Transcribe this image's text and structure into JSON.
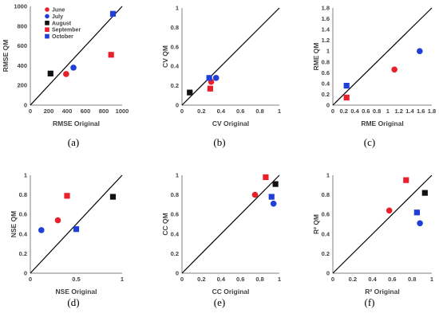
{
  "colors": {
    "June": "#e8202a",
    "July": "#1f3fd6",
    "August": "#111111",
    "September": "#e8202a",
    "October": "#1f3fd6",
    "axis": "#808080",
    "line": "#000000"
  },
  "legend": [
    {
      "name": "June",
      "marker": "circle"
    },
    {
      "name": "July",
      "marker": "circle"
    },
    {
      "name": "August",
      "marker": "square"
    },
    {
      "name": "September",
      "marker": "square"
    },
    {
      "name": "October",
      "marker": "square"
    }
  ],
  "chart_data": [
    {
      "type": "scatter",
      "panel_label": "(a)",
      "xlabel": "RMSE Original",
      "ylabel": "RMSE QM",
      "xlim": [
        0,
        1000
      ],
      "ylim": [
        0,
        1000
      ],
      "xticks": [
        "0",
        "200",
        "400",
        "600",
        "800",
        "1000"
      ],
      "yticks": [
        "0",
        "200",
        "400",
        "600",
        "800",
        "1000"
      ],
      "identity_line": true,
      "legend": "top-left",
      "points": [
        {
          "series": "June",
          "x": 390,
          "y": 315
        },
        {
          "series": "July",
          "x": 470,
          "y": 380
        },
        {
          "series": "August",
          "x": 220,
          "y": 320
        },
        {
          "series": "September",
          "x": 880,
          "y": 510
        },
        {
          "series": "October",
          "x": 900,
          "y": 925
        }
      ]
    },
    {
      "type": "scatter",
      "panel_label": "(b)",
      "xlabel": "CV Original",
      "ylabel": "CV QM",
      "xlim": [
        0,
        1
      ],
      "ylim": [
        0,
        1
      ],
      "xticks": [
        "0",
        "0.2",
        "0.4",
        "0.6",
        "0.8",
        "1"
      ],
      "yticks": [
        "0",
        "0.2",
        "0.4",
        "0.6",
        "0.8",
        "1"
      ],
      "identity_line": true,
      "points": [
        {
          "series": "June",
          "x": 0.3,
          "y": 0.24
        },
        {
          "series": "July",
          "x": 0.35,
          "y": 0.28
        },
        {
          "series": "August",
          "x": 0.08,
          "y": 0.13
        },
        {
          "series": "September",
          "x": 0.29,
          "y": 0.17
        },
        {
          "series": "October",
          "x": 0.28,
          "y": 0.28
        }
      ]
    },
    {
      "type": "scatter",
      "panel_label": "(c)",
      "xlabel": "RME Original",
      "ylabel": "RME QM",
      "xlim": [
        0,
        1.8
      ],
      "ylim": [
        0,
        1.8
      ],
      "xticks": [
        "0",
        "0.2",
        "0.4",
        "0.6",
        "0.8",
        "1",
        "1.2",
        "1.4",
        "1.6",
        "1.8"
      ],
      "yticks": [
        "0",
        "0.2",
        "0.4",
        "0.6",
        "0.8",
        "1",
        "1.2",
        "1.4",
        "1.6",
        "1.8"
      ],
      "identity_line": true,
      "points": [
        {
          "series": "June",
          "x": 1.12,
          "y": 0.66
        },
        {
          "series": "July",
          "x": 1.58,
          "y": 1.0
        },
        {
          "series": "September",
          "x": 0.25,
          "y": 0.14
        },
        {
          "series": "October",
          "x": 0.25,
          "y": 0.36
        }
      ]
    },
    {
      "type": "scatter",
      "panel_label": "(d)",
      "xlabel": "NSE Original",
      "ylabel": "NSE QM",
      "xlim": [
        0,
        1
      ],
      "ylim": [
        0,
        1
      ],
      "xticks": [
        "0",
        "0.5",
        "1"
      ],
      "yticks": [
        "0",
        "0.2",
        "0.4",
        "0.6",
        "0.8",
        "1"
      ],
      "identity_line": true,
      "points": [
        {
          "series": "June",
          "x": 0.3,
          "y": 0.54
        },
        {
          "series": "July",
          "x": 0.12,
          "y": 0.44
        },
        {
          "series": "August",
          "x": 0.9,
          "y": 0.78
        },
        {
          "series": "September",
          "x": 0.4,
          "y": 0.79
        },
        {
          "series": "October",
          "x": 0.5,
          "y": 0.45
        }
      ]
    },
    {
      "type": "scatter",
      "panel_label": "(e)",
      "xlabel": "CC Original",
      "ylabel": "CC QM",
      "xlim": [
        0,
        1
      ],
      "ylim": [
        0,
        1
      ],
      "xticks": [
        "0",
        "0.2",
        "0.4",
        "0.6",
        "0.8",
        "1"
      ],
      "yticks": [
        "0",
        "0.2",
        "0.4",
        "0.6",
        "0.8",
        "1"
      ],
      "identity_line": true,
      "points": [
        {
          "series": "June",
          "x": 0.75,
          "y": 0.8
        },
        {
          "series": "July",
          "x": 0.94,
          "y": 0.71
        },
        {
          "series": "August",
          "x": 0.96,
          "y": 0.91
        },
        {
          "series": "September",
          "x": 0.86,
          "y": 0.98
        },
        {
          "series": "October",
          "x": 0.92,
          "y": 0.78
        }
      ]
    },
    {
      "type": "scatter",
      "panel_label": "(f)",
      "xlabel": "R² Original",
      "ylabel": "R² QM",
      "xlim": [
        0,
        1
      ],
      "ylim": [
        0,
        1
      ],
      "xticks": [
        "0",
        "0.2",
        "0.4",
        "0.6",
        "0.8",
        "1"
      ],
      "yticks": [
        "0",
        "0.2",
        "0.4",
        "0.6",
        "0.8",
        "1"
      ],
      "identity_line": true,
      "points": [
        {
          "series": "June",
          "x": 0.57,
          "y": 0.64
        },
        {
          "series": "July",
          "x": 0.88,
          "y": 0.51
        },
        {
          "series": "August",
          "x": 0.93,
          "y": 0.82
        },
        {
          "series": "September",
          "x": 0.74,
          "y": 0.95
        },
        {
          "series": "October",
          "x": 0.85,
          "y": 0.62
        }
      ]
    }
  ]
}
